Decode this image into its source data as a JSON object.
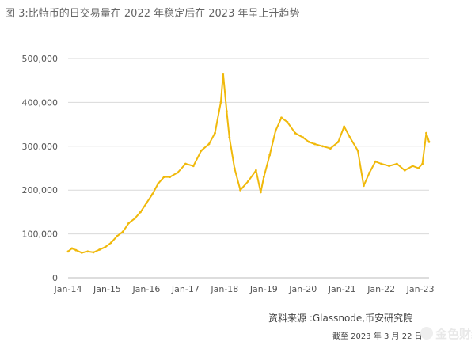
{
  "page": {
    "title": "图 3:比特币的日交易量在 2022 年稳定后在 2023 年呈上升趋势",
    "source": "资料来源 :Glassnode,币安研究院",
    "date_note": "截至 2023 年 3 月 22 日",
    "watermark_text": "金色财经"
  },
  "colors": {
    "series": "#f0b90b",
    "grid": "#d9d9d9",
    "text": "#555555"
  },
  "chart_data": {
    "type": "line",
    "title": "",
    "xlabel": "",
    "ylabel": "",
    "grid": true,
    "legend": "none",
    "xlim": [
      2014.0,
      2023.22
    ],
    "ylim": [
      0,
      500000
    ],
    "xticks": [
      {
        "label": "Jan-14",
        "x": 2014
      },
      {
        "label": "Jan-15",
        "x": 2015
      },
      {
        "label": "Jan-16",
        "x": 2016
      },
      {
        "label": "Jan-17",
        "x": 2017
      },
      {
        "label": "Jan-18",
        "x": 2018
      },
      {
        "label": "Jan-19",
        "x": 2019
      },
      {
        "label": "Jan-20",
        "x": 2020
      },
      {
        "label": "Jan-21",
        "x": 2021
      },
      {
        "label": "Jan-22",
        "x": 2022
      },
      {
        "label": "Jan-23",
        "x": 2023
      }
    ],
    "yticks": [
      {
        "label": "0",
        "y": 0
      },
      {
        "label": "100,000",
        "y": 100000
      },
      {
        "label": "200,000",
        "y": 200000
      },
      {
        "label": "300,000",
        "y": 300000
      },
      {
        "label": "400,000",
        "y": 400000
      },
      {
        "label": "500,000",
        "y": 500000
      }
    ],
    "series": [
      {
        "values": [
          [
            2014.0,
            60000
          ],
          [
            2014.1,
            67000
          ],
          [
            2014.2,
            63000
          ],
          [
            2014.35,
            57000
          ],
          [
            2014.5,
            60000
          ],
          [
            2014.65,
            58000
          ],
          [
            2014.8,
            64000
          ],
          [
            2014.95,
            70000
          ],
          [
            2015.1,
            80000
          ],
          [
            2015.25,
            95000
          ],
          [
            2015.4,
            105000
          ],
          [
            2015.55,
            125000
          ],
          [
            2015.7,
            135000
          ],
          [
            2015.85,
            150000
          ],
          [
            2016.0,
            170000
          ],
          [
            2016.15,
            190000
          ],
          [
            2016.3,
            215000
          ],
          [
            2016.45,
            230000
          ],
          [
            2016.6,
            230000
          ],
          [
            2016.8,
            240000
          ],
          [
            2017.0,
            260000
          ],
          [
            2017.2,
            255000
          ],
          [
            2017.4,
            290000
          ],
          [
            2017.6,
            305000
          ],
          [
            2017.75,
            330000
          ],
          [
            2017.9,
            400000
          ],
          [
            2017.96,
            465000
          ],
          [
            2018.05,
            380000
          ],
          [
            2018.12,
            320000
          ],
          [
            2018.25,
            250000
          ],
          [
            2018.4,
            200000
          ],
          [
            2018.6,
            220000
          ],
          [
            2018.8,
            245000
          ],
          [
            2018.92,
            195000
          ],
          [
            2019.0,
            230000
          ],
          [
            2019.15,
            280000
          ],
          [
            2019.3,
            335000
          ],
          [
            2019.45,
            365000
          ],
          [
            2019.6,
            355000
          ],
          [
            2019.8,
            330000
          ],
          [
            2020.0,
            320000
          ],
          [
            2020.15,
            310000
          ],
          [
            2020.3,
            305000
          ],
          [
            2020.5,
            300000
          ],
          [
            2020.7,
            295000
          ],
          [
            2020.9,
            310000
          ],
          [
            2021.05,
            345000
          ],
          [
            2021.2,
            320000
          ],
          [
            2021.4,
            290000
          ],
          [
            2021.55,
            210000
          ],
          [
            2021.7,
            240000
          ],
          [
            2021.85,
            265000
          ],
          [
            2022.0,
            260000
          ],
          [
            2022.2,
            255000
          ],
          [
            2022.4,
            260000
          ],
          [
            2022.6,
            245000
          ],
          [
            2022.8,
            255000
          ],
          [
            2022.95,
            250000
          ],
          [
            2023.05,
            260000
          ],
          [
            2023.15,
            330000
          ],
          [
            2023.22,
            310000
          ]
        ]
      }
    ]
  }
}
